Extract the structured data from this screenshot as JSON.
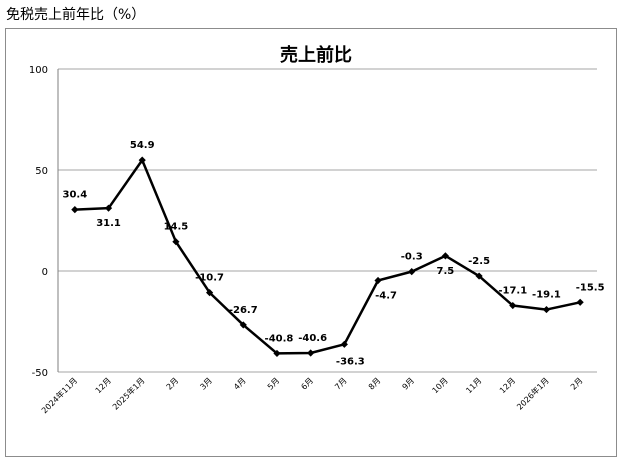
{
  "page_heading": "免税売上前年比（%）",
  "chart_data": {
    "type": "line",
    "title": "売上前比",
    "categories": [
      "2024年11月",
      "12月",
      "2025年1月",
      "2月",
      "3月",
      "4月",
      "5月",
      "6月",
      "7月",
      "8月",
      "9月",
      "10月",
      "11月",
      "12月",
      "2026年1月",
      "2月"
    ],
    "series": [
      {
        "values": [
          30.4,
          31.1,
          54.9,
          14.5,
          -10.7,
          -26.7,
          -40.8,
          -40.6,
          -36.3,
          -4.7,
          -0.3,
          7.5,
          -2.5,
          -17.1,
          -19.1,
          -15.5
        ]
      }
    ],
    "data_labels": [
      "30.4",
      "31.1",
      "54.9",
      "14.5",
      "-10.7",
      "-26.7",
      "-40.8",
      "-40.6",
      "-36.3",
      "-4.7",
      "-0.3",
      "7.5",
      "-2.5",
      "-17.1",
      "-19.1",
      "-15.5"
    ],
    "ylim": [
      -50,
      100
    ],
    "yticks": [
      "100",
      "50",
      "0",
      "-50"
    ],
    "ytick_values": [
      100,
      50,
      0,
      -50
    ],
    "grid": true,
    "legend": "none",
    "line_color": "#000000",
    "grid_color": "#a6a6a6"
  }
}
